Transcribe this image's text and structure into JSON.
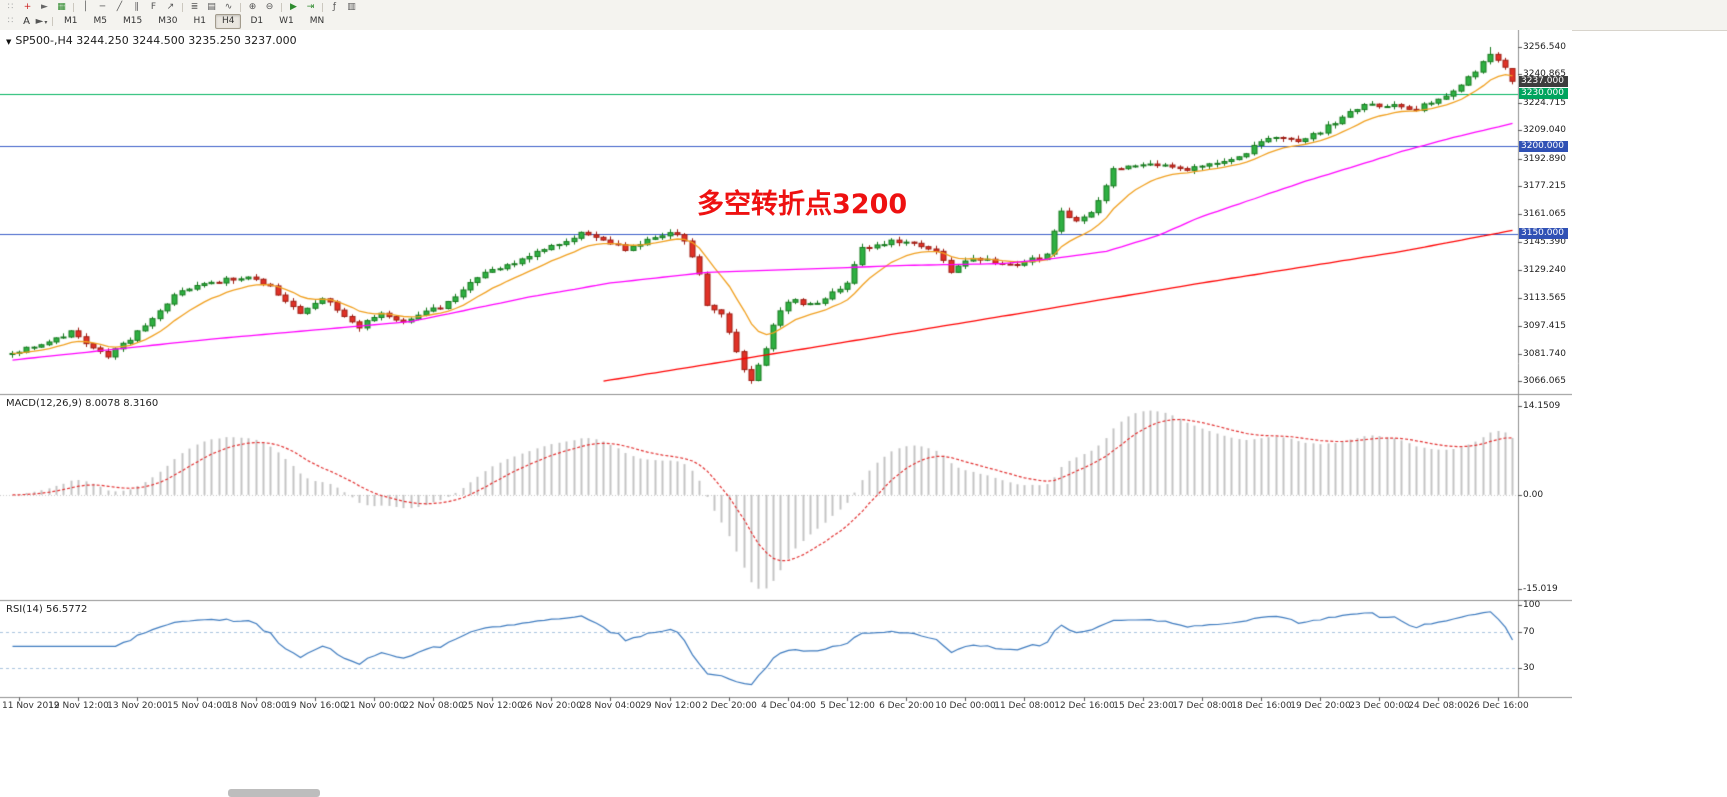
{
  "toolbar": {
    "row1": [
      {
        "name": "toolbar-drag-handle",
        "glyph": "∷",
        "color": "#a8a8a8",
        "static": true
      },
      {
        "name": "crosshair-icon",
        "glyph": "+",
        "color": "#cc2222"
      },
      {
        "name": "cursor-icon",
        "glyph": "►",
        "color": "#666666"
      },
      {
        "name": "new-order-icon",
        "glyph": "▦",
        "color": "#2e8b2e"
      },
      {
        "sep": true
      },
      {
        "name": "vertical-line-icon",
        "glyph": "│",
        "color": "#555555"
      },
      {
        "name": "horizontal-line-icon",
        "glyph": "─",
        "color": "#555555"
      },
      {
        "name": "trendline-icon",
        "glyph": "╱",
        "color": "#555555"
      },
      {
        "name": "channel-icon",
        "glyph": "∥",
        "color": "#555555"
      },
      {
        "name": "fibonacci-icon",
        "glyph": "F",
        "color": "#555555"
      },
      {
        "name": "arrows-icon",
        "glyph": "↗",
        "color": "#555555"
      },
      {
        "sep": true
      },
      {
        "name": "bar-chart-icon",
        "glyph": "≣",
        "color": "#555555"
      },
      {
        "name": "candlestick-chart-icon",
        "glyph": "▤",
        "color": "#555555"
      },
      {
        "name": "line-chart-icon",
        "glyph": "∿",
        "color": "#555555"
      },
      {
        "sep": true
      },
      {
        "name": "zoom-in-icon",
        "glyph": "⊕",
        "color": "#555555"
      },
      {
        "name": "zoom-out-icon",
        "glyph": "⊖",
        "color": "#555555"
      },
      {
        "sep": true
      },
      {
        "name": "auto-scroll-icon",
        "glyph": "▶",
        "color": "#2e8b2e"
      },
      {
        "name": "chart-shift-icon",
        "glyph": "⇥",
        "color": "#2e8b2e"
      },
      {
        "sep": true
      },
      {
        "name": "indicators-icon",
        "glyph": "ƒ",
        "color": "#555555"
      },
      {
        "name": "templates-icon",
        "glyph": "▥",
        "color": "#555555"
      }
    ],
    "row2": {
      "handle_glyph": "∷",
      "text_tool": {
        "name": "text-tool-button",
        "label": "A"
      },
      "shapes_tool": {
        "name": "shapes-tool-button",
        "glyph": "►",
        "caret": "▾"
      },
      "timeframes": [
        "M1",
        "M5",
        "M15",
        "M30",
        "H1",
        "H4",
        "D1",
        "W1",
        "MN"
      ],
      "active_timeframe": "H4"
    }
  },
  "chart_data": [
    {
      "type": "candlestick",
      "symbol": "SP500-",
      "timeframe": "H4",
      "title_text": "SP500-,H4  3244.250 3244.500 3235.250 3237.000",
      "current_ohlc": {
        "open": 3244.25,
        "high": 3244.5,
        "low": 3235.25,
        "close": 3237.0
      },
      "y_ticks": [
        3256.54,
        3240.865,
        3224.715,
        3209.04,
        3192.89,
        3177.215,
        3161.065,
        3145.39,
        3129.24,
        3113.565,
        3097.415,
        3081.74,
        3066.065
      ],
      "price_tags": [
        {
          "label": "3237.000",
          "price": 3237.0,
          "bg": "#3d3d3d"
        },
        {
          "label": "3230.000",
          "price": 3230.0,
          "bg": "#00a45e"
        },
        {
          "label": "3200.000",
          "price": 3200.0,
          "bg": "#3051b5"
        },
        {
          "label": "3150.000",
          "price": 3150.0,
          "bg": "#3051b5"
        }
      ],
      "hlines": [
        {
          "price": 3230.0,
          "color": "#00b35f"
        },
        {
          "price": 3200.0,
          "color": "#3b5ec9"
        },
        {
          "price": 3150.0,
          "color": "#3b5ec9"
        }
      ],
      "annotation": {
        "text": "多空转折点3200",
        "color": "#ee1111"
      },
      "num_candles": 204,
      "close_path": [
        [
          0,
          3082
        ],
        [
          4,
          3087
        ],
        [
          8,
          3094
        ],
        [
          11,
          3084
        ],
        [
          13,
          3080
        ],
        [
          16,
          3090
        ],
        [
          20,
          3106
        ],
        [
          23,
          3118
        ],
        [
          27,
          3122
        ],
        [
          32,
          3126
        ],
        [
          35,
          3120
        ],
        [
          39,
          3105
        ],
        [
          42,
          3114
        ],
        [
          45,
          3103
        ],
        [
          47,
          3097
        ],
        [
          50,
          3104
        ],
        [
          53,
          3100
        ],
        [
          56,
          3106
        ],
        [
          58,
          3108
        ],
        [
          61,
          3118
        ],
        [
          63,
          3126
        ],
        [
          67,
          3132
        ],
        [
          71,
          3140
        ],
        [
          74,
          3145
        ],
        [
          77,
          3150
        ],
        [
          80,
          3147
        ],
        [
          83,
          3141
        ],
        [
          86,
          3146
        ],
        [
          89,
          3150
        ],
        [
          91,
          3147
        ],
        [
          93,
          3128
        ],
        [
          94,
          3110
        ],
        [
          96,
          3105
        ],
        [
          97,
          3093
        ],
        [
          99,
          3072
        ],
        [
          100,
          3067
        ],
        [
          102,
          3085
        ],
        [
          103,
          3098
        ],
        [
          105,
          3112
        ],
        [
          108,
          3110
        ],
        [
          110,
          3113
        ],
        [
          113,
          3122
        ],
        [
          115,
          3142
        ],
        [
          118,
          3145
        ],
        [
          120,
          3146
        ],
        [
          123,
          3143
        ],
        [
          125,
          3140
        ],
        [
          127,
          3128
        ],
        [
          130,
          3136
        ],
        [
          133,
          3134
        ],
        [
          136,
          3133
        ],
        [
          138,
          3135
        ],
        [
          140,
          3138
        ],
        [
          142,
          3163
        ],
        [
          144,
          3157
        ],
        [
          146,
          3162
        ],
        [
          147,
          3168
        ],
        [
          149,
          3186
        ],
        [
          152,
          3189
        ],
        [
          155,
          3190
        ],
        [
          158,
          3187
        ],
        [
          161,
          3188
        ],
        [
          164,
          3192
        ],
        [
          167,
          3196
        ],
        [
          169,
          3203
        ],
        [
          171,
          3205
        ],
        [
          173,
          3203
        ],
        [
          175,
          3204
        ],
        [
          177,
          3208
        ],
        [
          179,
          3214
        ],
        [
          181,
          3219
        ],
        [
          183,
          3224
        ],
        [
          185,
          3222
        ],
        [
          188,
          3223
        ],
        [
          190,
          3221
        ],
        [
          192,
          3225
        ],
        [
          194,
          3228
        ],
        [
          196,
          3235
        ],
        [
          198,
          3242
        ],
        [
          200,
          3252
        ],
        [
          201,
          3250
        ],
        [
          202,
          3244
        ],
        [
          203,
          3237
        ]
      ],
      "ma_mid_path": [
        [
          0,
          3078
        ],
        [
          27,
          3090
        ],
        [
          54,
          3100
        ],
        [
          70,
          3114
        ],
        [
          81,
          3122
        ],
        [
          94,
          3128
        ],
        [
          108,
          3130
        ],
        [
          121,
          3132
        ],
        [
          134,
          3133
        ],
        [
          141,
          3136
        ],
        [
          148,
          3140
        ],
        [
          155,
          3149
        ],
        [
          161,
          3160
        ],
        [
          168,
          3170
        ],
        [
          175,
          3180
        ],
        [
          182,
          3189
        ],
        [
          188,
          3197
        ],
        [
          195,
          3205
        ],
        [
          203,
          3213
        ]
      ],
      "ma_slow_path": [
        [
          80,
          3066
        ],
        [
          108,
          3085
        ],
        [
          134,
          3103
        ],
        [
          161,
          3122
        ],
        [
          188,
          3140
        ],
        [
          203,
          3152
        ]
      ],
      "ma_colors": {
        "fast": "#f0a020",
        "mid": "#ff00ff",
        "slow": "#ff0000"
      },
      "candle_colors": {
        "up": "#2fb043",
        "up_border": "#177a1e",
        "down": "#e03127",
        "down_border": "#9e1d13"
      },
      "x_labels": [
        "11 Nov 2019",
        "12 Nov 12:00",
        "13 Nov 20:00",
        "15 Nov 04:00",
        "18 Nov 08:00",
        "19 Nov 16:00",
        "21 Nov 00:00",
        "22 Nov 08:00",
        "25 Nov 12:00",
        "26 Nov 20:00",
        "28 Nov 04:00",
        "29 Nov 12:00",
        "2 Dec 20:00",
        "4 Dec 04:00",
        "5 Dec 12:00",
        "6 Dec 20:00",
        "10 Dec 00:00",
        "11 Dec 08:00",
        "12 Dec 16:00",
        "15 Dec 23:00",
        "17 Dec 08:00",
        "18 Dec 16:00",
        "19 Dec 20:00",
        "23 Dec 00:00",
        "24 Dec 08:00",
        "26 Dec 16:00"
      ]
    },
    {
      "type": "macd",
      "label": "MACD(12,26,9) 8.0078 8.3160",
      "params": {
        "fast": 12,
        "slow": 26,
        "signal": 9
      },
      "current": {
        "main": 8.0078,
        "signal": 8.316
      },
      "y_ticks": [
        {
          "label": "14.1509",
          "value": 14.1509
        },
        {
          "label": "0.00",
          "value": 0.0
        },
        {
          "label": "-15.019",
          "value": -15.019
        }
      ],
      "histogram_color": "#c4c4c4",
      "signal_color": "#e23333"
    },
    {
      "type": "rsi",
      "label": "RSI(14) 56.5772",
      "period": 14,
      "current": 56.5772,
      "y_ticks": [
        {
          "label": "100",
          "value": 100
        },
        {
          "label": "70",
          "value": 70
        },
        {
          "label": "30",
          "value": 30
        }
      ],
      "levels": [
        70,
        30
      ],
      "line_color": "#3e7bbf",
      "level_color": "#a9c3de"
    }
  ]
}
